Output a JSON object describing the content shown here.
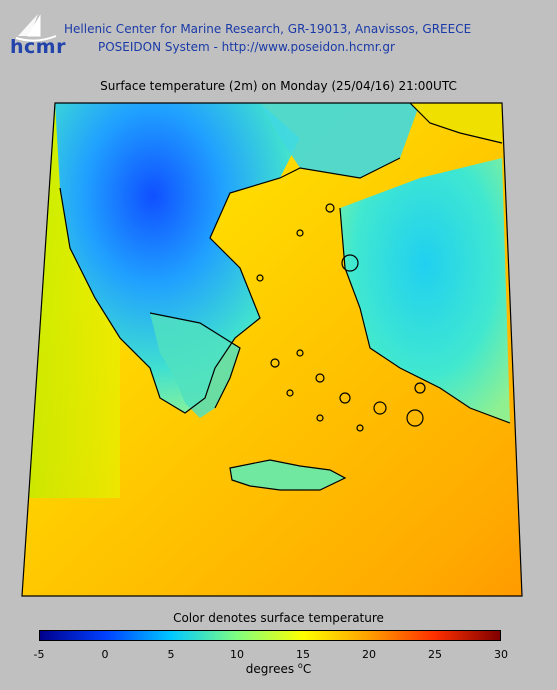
{
  "header": {
    "logo_text": "hcmr",
    "org_line1": "Hellenic Center for Marine Research, GR-19013, Anavissos, GREECE",
    "org_line2": "POSEIDON System - http://www.poseidon.hcmr.gr"
  },
  "map": {
    "title": "Surface temperature (2m) on Monday (25/04/16) 21:00UTC"
  },
  "legend": {
    "caption": "Color denotes surface temperature",
    "ticks": [
      "-5",
      "0",
      "5",
      "10",
      "15",
      "20",
      "25",
      "30"
    ],
    "range": [
      -5,
      30
    ],
    "units_prefix": "degrees ",
    "units_sup": "o",
    "units_suffix": "C",
    "colors": [
      "#00008b",
      "#0040ff",
      "#00c8ff",
      "#80ff80",
      "#ffff00",
      "#ffa000",
      "#ff3000",
      "#800000"
    ]
  }
}
